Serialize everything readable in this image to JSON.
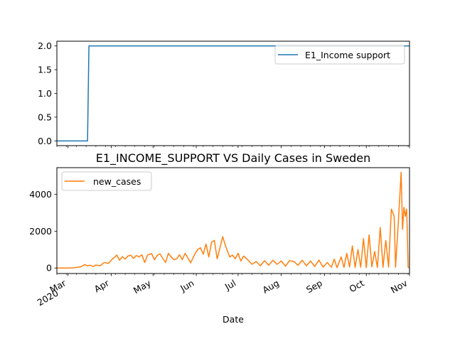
{
  "chart_data": [
    {
      "type": "line",
      "title": "",
      "xlabel": "",
      "ylabel": "",
      "ylim": [
        -0.1,
        2.1
      ],
      "yticks": [
        0.0,
        0.5,
        1.0,
        1.5,
        2.0
      ],
      "ytick_labels": [
        "0.0",
        "0.5",
        "1.0",
        "1.5",
        "2.0"
      ],
      "xlim": [
        "2020-02-22",
        "2020-11-01"
      ],
      "grid": false,
      "legend_position": "upper right",
      "series": [
        {
          "name": "E1_Income support",
          "color": "#1f77b4",
          "x": [
            "2020-02-22",
            "2020-03-15",
            "2020-03-16",
            "2020-11-01"
          ],
          "values": [
            0,
            0,
            2,
            2
          ]
        }
      ]
    },
    {
      "type": "line",
      "title": "E1_INCOME_SUPPORT VS Daily Cases in Sweden",
      "xlabel": "Date",
      "ylabel": "",
      "ylim": [
        -300,
        5450
      ],
      "yticks": [
        0,
        2000,
        4000
      ],
      "ytick_labels": [
        "0",
        "2000",
        "4000"
      ],
      "xlim": [
        "2020-02-22",
        "2020-11-01"
      ],
      "xticks": [
        "2020-03-01",
        "2020-04-01",
        "2020-05-01",
        "2020-06-01",
        "2020-07-01",
        "2020-08-01",
        "2020-09-01",
        "2020-10-01",
        "2020-11-01"
      ],
      "xtick_labels": [
        "Mar\n2020",
        "Apr",
        "May",
        "Jun",
        "Jul",
        "Aug",
        "Sep",
        "Oct",
        "Nov"
      ],
      "grid": false,
      "legend_position": "upper left",
      "series": [
        {
          "name": "new_cases",
          "color": "#ff7f0e",
          "x": [
            "2020-02-22",
            "2020-03-01",
            "2020-03-05",
            "2020-03-10",
            "2020-03-13",
            "2020-03-15",
            "2020-03-17",
            "2020-03-19",
            "2020-03-21",
            "2020-03-24",
            "2020-03-27",
            "2020-03-30",
            "2020-04-02",
            "2020-04-05",
            "2020-04-07",
            "2020-04-09",
            "2020-04-11",
            "2020-04-13",
            "2020-04-15",
            "2020-04-17",
            "2020-04-19",
            "2020-04-21",
            "2020-04-23",
            "2020-04-25",
            "2020-04-27",
            "2020-04-30",
            "2020-05-02",
            "2020-05-04",
            "2020-05-06",
            "2020-05-08",
            "2020-05-10",
            "2020-05-12",
            "2020-05-14",
            "2020-05-16",
            "2020-05-18",
            "2020-05-20",
            "2020-05-22",
            "2020-05-24",
            "2020-05-26",
            "2020-05-28",
            "2020-05-31",
            "2020-06-02",
            "2020-06-04",
            "2020-06-06",
            "2020-06-08",
            "2020-06-10",
            "2020-06-12",
            "2020-06-14",
            "2020-06-16",
            "2020-06-18",
            "2020-06-20",
            "2020-06-22",
            "2020-06-24",
            "2020-06-25",
            "2020-06-27",
            "2020-06-29",
            "2020-07-01",
            "2020-07-03",
            "2020-07-05",
            "2020-07-08",
            "2020-07-11",
            "2020-07-14",
            "2020-07-17",
            "2020-07-20",
            "2020-07-23",
            "2020-07-26",
            "2020-07-29",
            "2020-08-01",
            "2020-08-04",
            "2020-08-07",
            "2020-08-10",
            "2020-08-13",
            "2020-08-16",
            "2020-08-19",
            "2020-08-22",
            "2020-08-25",
            "2020-08-28",
            "2020-08-31",
            "2020-09-03",
            "2020-09-06",
            "2020-09-08",
            "2020-09-10",
            "2020-09-13",
            "2020-09-15",
            "2020-09-17",
            "2020-09-19",
            "2020-09-21",
            "2020-09-23",
            "2020-09-25",
            "2020-09-27",
            "2020-09-29",
            "2020-10-01",
            "2020-10-03",
            "2020-10-05",
            "2020-10-07",
            "2020-10-09",
            "2020-10-11",
            "2020-10-13",
            "2020-10-15",
            "2020-10-17",
            "2020-10-19",
            "2020-10-21",
            "2020-10-22",
            "2020-10-24",
            "2020-10-26",
            "2020-10-27",
            "2020-10-28",
            "2020-10-29",
            "2020-10-30",
            "2020-10-31",
            "2020-11-01"
          ],
          "values": [
            0,
            0,
            10,
            60,
            180,
            120,
            150,
            80,
            160,
            120,
            300,
            250,
            500,
            700,
            420,
            620,
            480,
            650,
            700,
            520,
            680,
            600,
            720,
            300,
            700,
            780,
            450,
            690,
            760,
            520,
            300,
            800,
            600,
            450,
            500,
            720,
            450,
            800,
            550,
            280,
            760,
            1000,
            1100,
            750,
            1300,
            600,
            1400,
            1500,
            500,
            1100,
            1700,
            1200,
            800,
            600,
            700,
            500,
            800,
            380,
            650,
            450,
            200,
            350,
            120,
            400,
            150,
            420,
            200,
            380,
            100,
            400,
            350,
            150,
            420,
            120,
            380,
            80,
            430,
            50,
            300,
            40,
            480,
            20,
            600,
            30,
            800,
            50,
            1200,
            30,
            1000,
            40,
            1600,
            20,
            1800,
            60,
            900,
            30,
            2200,
            40,
            1500,
            50,
            3200,
            2800,
            40,
            2500,
            5200,
            2100,
            3300,
            2800,
            3200,
            50,
            0
          ]
        }
      ]
    }
  ]
}
